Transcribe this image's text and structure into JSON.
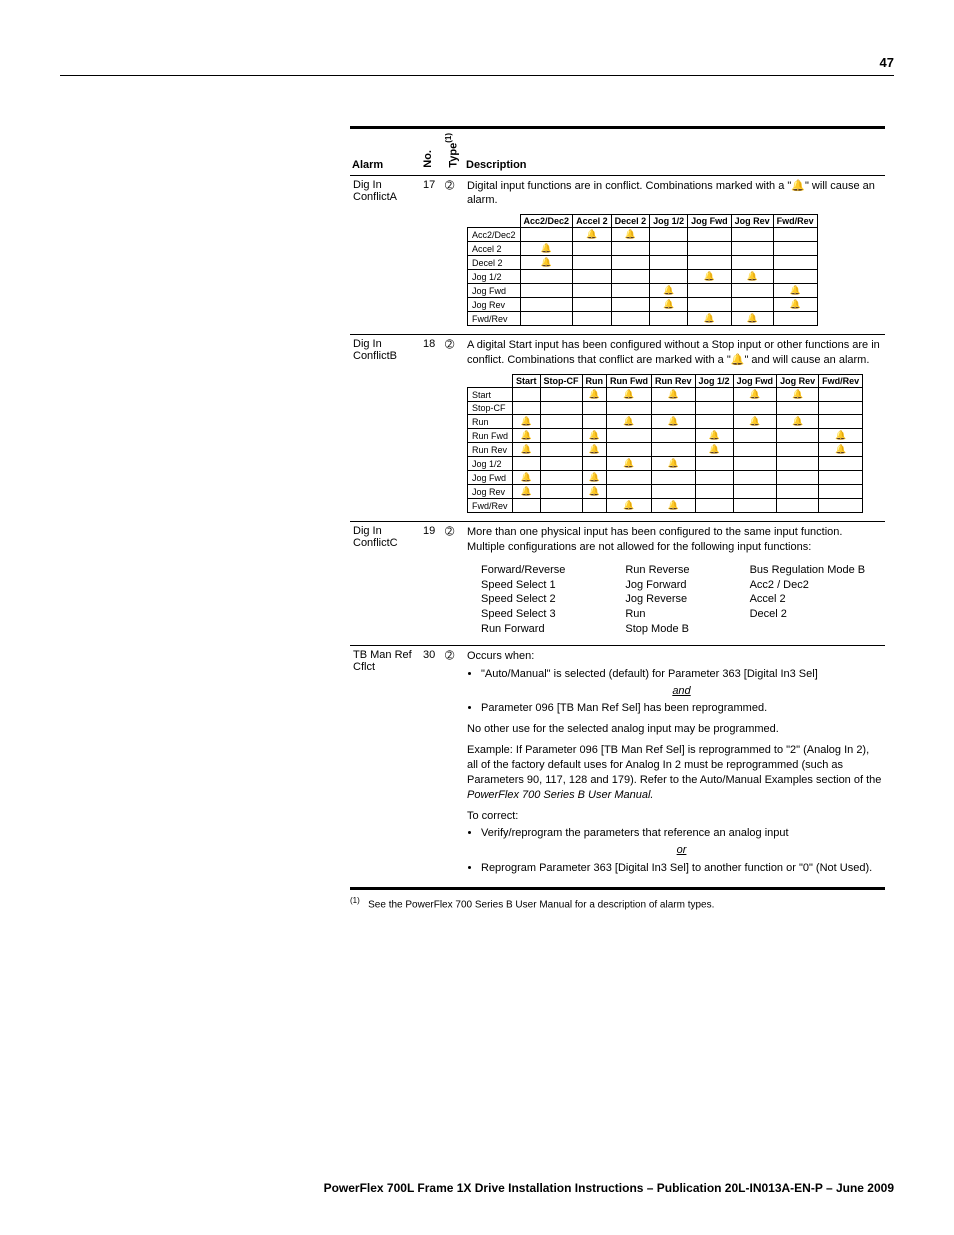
{
  "page_number": "47",
  "headers": {
    "alarm": "Alarm",
    "no": "No.",
    "type": "Type",
    "type_sup": "(1)",
    "description": "Description"
  },
  "rows": {
    "r1": {
      "alarm": "Dig In ConflictA",
      "no": "17",
      "type": "➁",
      "desc": "Digital input functions are in conflict. Combinations marked with a \"🔔\" will cause an alarm.",
      "matrix": {
        "cols": [
          "Acc2/Dec2",
          "Accel 2",
          "Decel 2",
          "Jog 1/2",
          "Jog Fwd",
          "Jog Rev",
          "Fwd/Rev"
        ],
        "rows": [
          {
            "label": "Acc2/Dec2",
            "cells": [
              "",
              "🔔",
              "🔔",
              "",
              "",
              "",
              ""
            ]
          },
          {
            "label": "Accel 2",
            "cells": [
              "🔔",
              "",
              "",
              "",
              "",
              "",
              ""
            ]
          },
          {
            "label": "Decel 2",
            "cells": [
              "🔔",
              "",
              "",
              "",
              "",
              "",
              ""
            ]
          },
          {
            "label": "Jog 1/2",
            "cells": [
              "",
              "",
              "",
              "",
              "🔔",
              "🔔",
              ""
            ]
          },
          {
            "label": "Jog Fwd",
            "cells": [
              "",
              "",
              "",
              "🔔",
              "",
              "",
              "🔔"
            ]
          },
          {
            "label": "Jog Rev",
            "cells": [
              "",
              "",
              "",
              "🔔",
              "",
              "",
              "🔔"
            ]
          },
          {
            "label": "Fwd/Rev",
            "cells": [
              "",
              "",
              "",
              "",
              "🔔",
              "🔔",
              ""
            ]
          }
        ]
      }
    },
    "r2": {
      "alarm": "Dig In ConflictB",
      "no": "18",
      "type": "➁",
      "desc": "A digital Start input has been configured without a Stop input or other functions are in conflict. Combinations that conflict are marked with a \"🔔\" and will cause an alarm.",
      "matrix": {
        "cols": [
          "Start",
          "Stop-CF",
          "Run",
          "Run Fwd",
          "Run Rev",
          "Jog 1/2",
          "Jog Fwd",
          "Jog Rev",
          "Fwd/Rev"
        ],
        "rows": [
          {
            "label": "Start",
            "cells": [
              "",
              "",
              "🔔",
              "🔔",
              "🔔",
              "",
              "🔔",
              "🔔",
              ""
            ]
          },
          {
            "label": "Stop-CF",
            "cells": [
              "",
              "",
              "",
              "",
              "",
              "",
              "",
              "",
              ""
            ]
          },
          {
            "label": "Run",
            "cells": [
              "🔔",
              "",
              "",
              "🔔",
              "🔔",
              "",
              "🔔",
              "🔔",
              ""
            ]
          },
          {
            "label": "Run Fwd",
            "cells": [
              "🔔",
              "",
              "🔔",
              "",
              "",
              "🔔",
              "",
              "",
              "🔔"
            ]
          },
          {
            "label": "Run Rev",
            "cells": [
              "🔔",
              "",
              "🔔",
              "",
              "",
              "🔔",
              "",
              "",
              "🔔"
            ]
          },
          {
            "label": "Jog 1/2",
            "cells": [
              "",
              "",
              "",
              "🔔",
              "🔔",
              "",
              "",
              "",
              ""
            ]
          },
          {
            "label": "Jog Fwd",
            "cells": [
              "🔔",
              "",
              "🔔",
              "",
              "",
              "",
              "",
              "",
              ""
            ]
          },
          {
            "label": "Jog Rev",
            "cells": [
              "🔔",
              "",
              "🔔",
              "",
              "",
              "",
              "",
              "",
              ""
            ]
          },
          {
            "label": "Fwd/Rev",
            "cells": [
              "",
              "",
              "",
              "🔔",
              "🔔",
              "",
              "",
              "",
              ""
            ]
          }
        ]
      }
    },
    "r3": {
      "alarm": "Dig In ConflictC",
      "no": "19",
      "type": "➁",
      "desc": "More than one physical input has been configured to the same input function. Multiple configurations are not allowed for the following input functions:",
      "col1": [
        "Forward/Reverse",
        "Speed Select 1",
        "Speed Select 2",
        "Speed Select 3",
        "Run Forward"
      ],
      "col2": [
        "Run Reverse",
        "Jog Forward",
        "Jog Reverse",
        "Run",
        "Stop Mode B"
      ],
      "col3": [
        "Bus Regulation Mode B",
        "Acc2 / Dec2",
        "Accel 2",
        "Decel 2"
      ]
    },
    "r4": {
      "alarm": "TB Man Ref Cflct",
      "no": "30",
      "type": "➁",
      "occurs": "Occurs when:",
      "b1": "\"Auto/Manual\" is selected (default) for Parameter 363 [Digital In3 Sel]",
      "and": "and",
      "b2": "Parameter 096 [TB Man Ref Sel] has been reprogrammed.",
      "p1": "No other use for the selected analog input may be programmed.",
      "p2a": "Example: If Parameter 096 [TB Man Ref Sel] is reprogrammed to \"2\" (Analog In 2), all of the factory default uses for Analog In 2 must be reprogrammed (such as Parameters 90, 117, 128 and 179). Refer to the Auto/Manual Examples section of the ",
      "p2b": "PowerFlex 700 Series B User Manual.",
      "correct": "To correct:",
      "c1": "Verify/reprogram the parameters that reference an analog input",
      "or": "or",
      "c2": "Reprogram Parameter 363 [Digital In3 Sel] to another function or \"0\" (Not Used)."
    }
  },
  "footnote_marker": "(1)",
  "footnote": "See the PowerFlex 700 Series B User Manual for a description of alarm types.",
  "footer": "PowerFlex 700L Frame 1X Drive Installation Instructions – Publication 20L-IN013A-EN-P – June 2009"
}
